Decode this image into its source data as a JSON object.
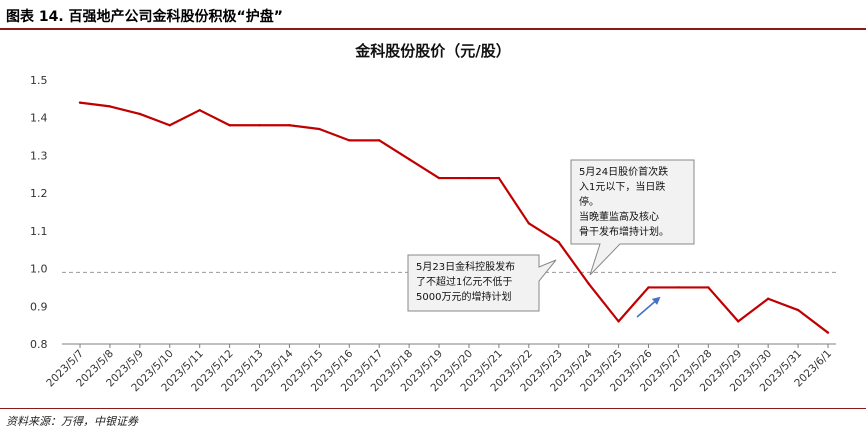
{
  "figure": {
    "title": "图表 14. 百强地产公司金科股份积极“护盘”",
    "source": "资料来源：万得，中银证券"
  },
  "chart_data": {
    "type": "line",
    "title": "金科股份股价（元/股）",
    "xlabel": "",
    "ylabel": "",
    "ylim": [
      0.8,
      1.5
    ],
    "yticks": [
      "1.5",
      "1.4",
      "1.3",
      "1.2",
      "1.1",
      "1.0",
      "0.9",
      "0.8"
    ],
    "categories": [
      "2023/5/7",
      "2023/5/8",
      "2023/5/9",
      "2023/5/10",
      "2023/5/11",
      "2023/5/12",
      "2023/5/13",
      "2023/5/14",
      "2023/5/15",
      "2023/5/16",
      "2023/5/17",
      "2023/5/18",
      "2023/5/19",
      "2023/5/20",
      "2023/5/21",
      "2023/5/22",
      "2023/5/23",
      "2023/5/24",
      "2023/5/25",
      "2023/5/26",
      "2023/5/27",
      "2023/5/28",
      "2023/5/29",
      "2023/5/30",
      "2023/5/31",
      "2023/6/1"
    ],
    "series": [
      {
        "color": "#c00000",
        "values": [
          1.44,
          1.43,
          1.41,
          1.38,
          1.42,
          1.38,
          1.38,
          1.38,
          1.37,
          1.34,
          1.34,
          1.29,
          1.24,
          1.24,
          1.24,
          1.12,
          1.07,
          0.96,
          0.86,
          0.95,
          0.95,
          0.95,
          0.86,
          0.92,
          0.89,
          0.83
        ]
      }
    ],
    "reference_line": {
      "y": 0.99,
      "style": "dashed",
      "color": "#999999"
    },
    "grid": false,
    "annotations": [
      {
        "lines": [
          "5月24日股价首次跌",
          "入1元以下，当日跌",
          "停。",
          "当晚董监高及核心",
          "骨干发布增持计划。"
        ]
      },
      {
        "lines": [
          "5月23日金科控股发布",
          "了不超过1亿元不低于",
          "5000万元的增持计划"
        ]
      }
    ],
    "arrow": {
      "color": "#4472c4"
    }
  }
}
